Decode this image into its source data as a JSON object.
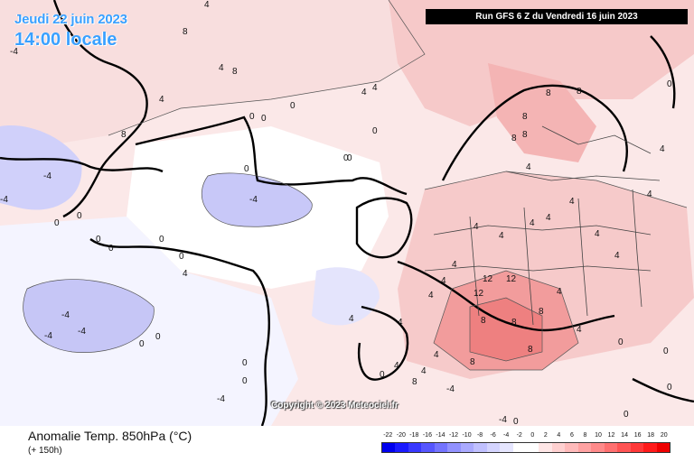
{
  "header": {
    "date": "Jeudi 22 juin 2023",
    "time": "14:00 locale",
    "run": "Run GFS 6 Z du Vendredi 16 juin 2023"
  },
  "copyright": "Copyright © 2023 Meteociel.fr",
  "footer": {
    "title": "Anomalie Temp. 850hPa (°C)",
    "subtitle": "(+ 150h)"
  },
  "legend": {
    "ticks": [
      "-22",
      "-20",
      "-18",
      "-16",
      "-14",
      "-12",
      "-10",
      "-8",
      "-6",
      "-4",
      "-2",
      "0",
      "2",
      "4",
      "6",
      "8",
      "10",
      "12",
      "14",
      "16",
      "18",
      "20"
    ],
    "colors": [
      "#0000ee",
      "#1a1aff",
      "#3838ff",
      "#5656ff",
      "#7474ff",
      "#9292ff",
      "#aaaaff",
      "#c0c0ff",
      "#d4d4ff",
      "#e6e6ff",
      "#ffffff",
      "#ffffff",
      "#ffe6e6",
      "#ffd0d0",
      "#ffbaba",
      "#ffa2a2",
      "#ff8a8a",
      "#ff7070",
      "#ff5454",
      "#ff3838",
      "#ff1a1a",
      "#ee0000"
    ]
  },
  "contour_labels": [
    {
      "id": "l1",
      "text": "8"
    },
    {
      "id": "l2",
      "text": "4"
    },
    {
      "id": "l3",
      "text": "8"
    },
    {
      "id": "l4",
      "text": "-4"
    },
    {
      "id": "l5",
      "text": "4"
    },
    {
      "id": "l6",
      "text": "4"
    },
    {
      "id": "l7",
      "text": "4"
    },
    {
      "id": "l8",
      "text": "4"
    },
    {
      "id": "l9",
      "text": "0"
    },
    {
      "id": "l10",
      "text": "0"
    },
    {
      "id": "l11",
      "text": "0"
    },
    {
      "id": "l12",
      "text": "8"
    },
    {
      "id": "l13",
      "text": "-4"
    },
    {
      "id": "l14",
      "text": "-4"
    },
    {
      "id": "l15",
      "text": "0"
    },
    {
      "id": "l16",
      "text": "0"
    },
    {
      "id": "l17",
      "text": "0"
    },
    {
      "id": "l18",
      "text": "0"
    },
    {
      "id": "l19",
      "text": "-4"
    },
    {
      "id": "l20",
      "text": "0"
    },
    {
      "id": "l21",
      "text": "0"
    },
    {
      "id": "l22",
      "text": "0"
    },
    {
      "id": "l23",
      "text": "-4"
    },
    {
      "id": "l24",
      "text": "-4"
    },
    {
      "id": "l25",
      "text": "0"
    },
    {
      "id": "l26",
      "text": "0"
    },
    {
      "id": "l27",
      "text": "4"
    },
    {
      "id": "l28",
      "text": "-4"
    },
    {
      "id": "l29",
      "text": "-4"
    },
    {
      "id": "l30",
      "text": "-4"
    },
    {
      "id": "l31",
      "text": "0"
    },
    {
      "id": "l32",
      "text": "0"
    },
    {
      "id": "l33",
      "text": "0"
    },
    {
      "id": "l34",
      "text": "0"
    },
    {
      "id": "l35",
      "text": "4"
    },
    {
      "id": "l36",
      "text": "4"
    },
    {
      "id": "l37",
      "text": "8"
    },
    {
      "id": "l38",
      "text": "8"
    },
    {
      "id": "l39",
      "text": "8"
    },
    {
      "id": "l40",
      "text": "8"
    },
    {
      "id": "l41",
      "text": "8"
    },
    {
      "id": "l42",
      "text": "4"
    },
    {
      "id": "l43",
      "text": "4"
    },
    {
      "id": "l44",
      "text": "4"
    },
    {
      "id": "l45",
      "text": "4"
    },
    {
      "id": "l46",
      "text": "4"
    },
    {
      "id": "l47",
      "text": "4"
    },
    {
      "id": "l48",
      "text": "4"
    },
    {
      "id": "l49",
      "text": "4"
    },
    {
      "id": "l50",
      "text": "4"
    },
    {
      "id": "l51",
      "text": "4"
    },
    {
      "id": "l52",
      "text": "4"
    },
    {
      "id": "l53",
      "text": "4"
    },
    {
      "id": "l54",
      "text": "12"
    },
    {
      "id": "l55",
      "text": "12"
    },
    {
      "id": "l56",
      "text": "8"
    },
    {
      "id": "l57",
      "text": "12"
    },
    {
      "id": "l58",
      "text": "8"
    },
    {
      "id": "l59",
      "text": "8"
    },
    {
      "id": "l60",
      "text": "8"
    },
    {
      "id": "l61",
      "text": "8"
    },
    {
      "id": "l62",
      "text": "4"
    },
    {
      "id": "l63",
      "text": "4"
    },
    {
      "id": "l64",
      "text": "4"
    },
    {
      "id": "l65",
      "text": "8"
    },
    {
      "id": "l66",
      "text": "4"
    },
    {
      "id": "l67",
      "text": "4"
    },
    {
      "id": "l68",
      "text": "0"
    },
    {
      "id": "l69",
      "text": "0"
    },
    {
      "id": "l70",
      "text": "-4"
    },
    {
      "id": "l71",
      "text": "0"
    },
    {
      "id": "l72",
      "text": "0"
    },
    {
      "id": "l73",
      "text": "0"
    },
    {
      "id": "l74",
      "text": "0"
    },
    {
      "id": "l75",
      "text": "0"
    },
    {
      "id": "l76",
      "text": "0"
    },
    {
      "id": "l77",
      "text": "4"
    }
  ]
}
